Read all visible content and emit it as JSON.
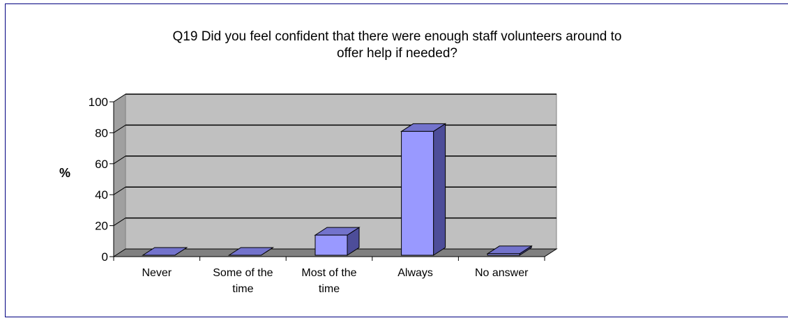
{
  "colors": {
    "frame_border": "#000080",
    "plot_background": "#c0c0c0",
    "bar_front": "#9999ff",
    "bar_side": "#4d4d99",
    "bar_top": "#7373cc",
    "bar_outline": "#000000"
  },
  "chart_data": {
    "type": "bar",
    "style": "3d-column",
    "title_lines": [
      "Q19 Did you feel confident that there were enough staff volunteers around to",
      "offer help if needed?"
    ],
    "ylabel": "%",
    "xlabel": "",
    "ylim": [
      0,
      100
    ],
    "y_ticks": [
      "0",
      "20",
      "40",
      "60",
      "80",
      "100"
    ],
    "y_tick_values": [
      0,
      20,
      40,
      60,
      80,
      100
    ],
    "grid": true,
    "legend": "none",
    "categories": [
      [
        "Never"
      ],
      [
        "Some of the",
        "time"
      ],
      [
        "Most of the",
        "time"
      ],
      [
        "Always"
      ],
      [
        "No answer"
      ]
    ],
    "values": [
      0,
      0,
      13,
      80,
      1
    ]
  }
}
